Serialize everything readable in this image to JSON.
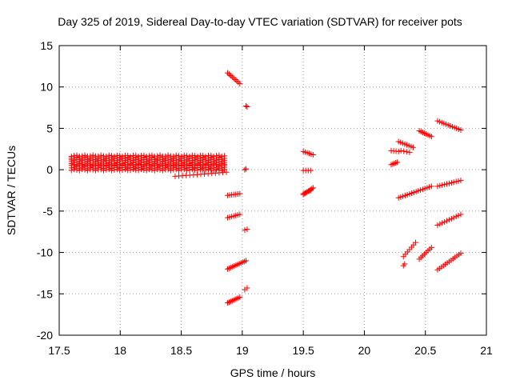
{
  "chart_data": {
    "type": "scatter",
    "title": "Day 325 of 2019, Sidereal Day-to-day VTEC variation (SDTVAR) for receiver pots",
    "xlabel": "GPS time / hours",
    "ylabel": "SDTVAR / TECUs",
    "xlim": [
      17.5,
      21
    ],
    "ylim": [
      -20,
      15
    ],
    "xticks": [
      17.5,
      18,
      18.5,
      19,
      19.5,
      20,
      20.5,
      21
    ],
    "yticks": [
      -20,
      -15,
      -10,
      -5,
      0,
      5,
      10,
      15
    ],
    "grid": true,
    "marker": "+",
    "color": "#ff0000",
    "dense_band": {
      "x_range": [
        17.6,
        18.87
      ],
      "y_values": [
        -0.1,
        0.15,
        0.4,
        0.6,
        0.85,
        1.1,
        1.35,
        1.6
      ],
      "x_step": 0.022
    },
    "tracks": [
      {
        "x_start": 18.45,
        "x_end": 18.87,
        "y_start": -0.8,
        "y_end": -0.3,
        "n": 15
      },
      {
        "x_start": 18.88,
        "x_end": 18.98,
        "y_start": 11.7,
        "y_end": 10.4,
        "n": 9
      },
      {
        "x_start": 18.88,
        "x_end": 18.98,
        "y_start": -3.1,
        "y_end": -2.9,
        "n": 7
      },
      {
        "x_start": 18.88,
        "x_end": 18.98,
        "y_start": -5.8,
        "y_end": -5.4,
        "n": 7
      },
      {
        "x_start": 18.88,
        "x_end": 19.03,
        "y_start": -12.0,
        "y_end": -11.0,
        "n": 12
      },
      {
        "x_start": 18.88,
        "x_end": 18.98,
        "y_start": -16.1,
        "y_end": -15.4,
        "n": 9
      },
      {
        "x_start": 19.03,
        "x_end": 19.04,
        "y_start": 7.7,
        "y_end": 7.6,
        "n": 2
      },
      {
        "x_start": 19.02,
        "x_end": 19.03,
        "y_start": 0.0,
        "y_end": 0.1,
        "n": 2
      },
      {
        "x_start": 19.02,
        "x_end": 19.04,
        "y_start": -7.3,
        "y_end": -7.2,
        "n": 2
      },
      {
        "x_start": 19.02,
        "x_end": 19.04,
        "y_start": -14.5,
        "y_end": -14.3,
        "n": 2
      },
      {
        "x_start": 19.5,
        "x_end": 19.58,
        "y_start": 2.2,
        "y_end": 1.8,
        "n": 6
      },
      {
        "x_start": 19.5,
        "x_end": 19.56,
        "y_start": -0.1,
        "y_end": -0.1,
        "n": 4
      },
      {
        "x_start": 19.5,
        "x_end": 19.58,
        "y_start": -3.0,
        "y_end": -2.2,
        "n": 9
      },
      {
        "x_start": 19.5,
        "x_end": 19.56,
        "y_start": -2.9,
        "y_end": -2.5,
        "n": 5
      },
      {
        "x_start": 20.22,
        "x_end": 20.27,
        "y_start": 0.6,
        "y_end": 0.9,
        "n": 5
      },
      {
        "x_start": 20.22,
        "x_end": 20.28,
        "y_start": 2.3,
        "y_end": 2.2,
        "n": 4
      },
      {
        "x_start": 20.28,
        "x_end": 20.4,
        "y_start": 3.4,
        "y_end": 2.7,
        "n": 8
      },
      {
        "x_start": 20.3,
        "x_end": 20.37,
        "y_start": 2.3,
        "y_end": 2.1,
        "n": 4
      },
      {
        "x_start": 20.45,
        "x_end": 20.55,
        "y_start": 4.7,
        "y_end": 4.0,
        "n": 8
      },
      {
        "x_start": 20.28,
        "x_end": 20.55,
        "y_start": -3.4,
        "y_end": -2.0,
        "n": 16
      },
      {
        "x_start": 20.32,
        "x_end": 20.42,
        "y_start": -10.5,
        "y_end": -8.8,
        "n": 7
      },
      {
        "x_start": 20.32,
        "x_end": 20.33,
        "y_start": -11.6,
        "y_end": -11.4,
        "n": 2
      },
      {
        "x_start": 20.45,
        "x_end": 20.55,
        "y_start": -10.8,
        "y_end": -9.4,
        "n": 8
      },
      {
        "x_start": 20.6,
        "x_end": 20.79,
        "y_start": 5.9,
        "y_end": 4.8,
        "n": 12
      },
      {
        "x_start": 20.6,
        "x_end": 20.79,
        "y_start": -2.0,
        "y_end": -1.3,
        "n": 11
      },
      {
        "x_start": 20.6,
        "x_end": 20.79,
        "y_start": -6.7,
        "y_end": -5.4,
        "n": 11
      },
      {
        "x_start": 20.6,
        "x_end": 20.79,
        "y_start": -12.1,
        "y_end": -10.1,
        "n": 13
      }
    ]
  }
}
